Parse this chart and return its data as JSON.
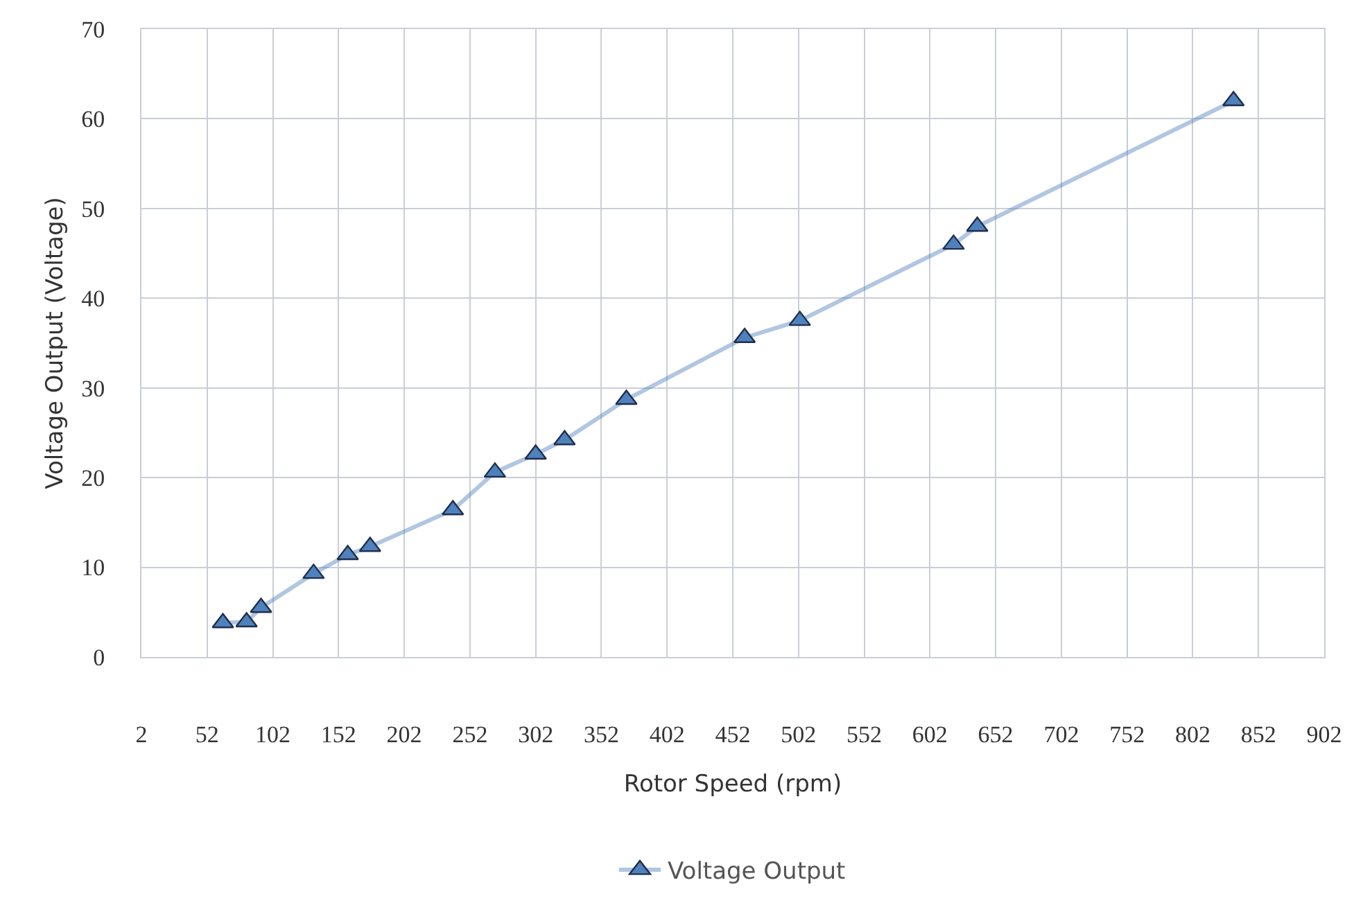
{
  "chart_data": {
    "type": "line",
    "xlabel": "Rotor Speed (rpm)",
    "ylabel": "Voltage Output (Voltage)",
    "xlim": [
      2,
      902
    ],
    "xticks": [
      2,
      52,
      102,
      152,
      202,
      252,
      302,
      352,
      402,
      452,
      502,
      552,
      602,
      652,
      702,
      752,
      802,
      852,
      902
    ],
    "ylim": [
      0,
      70
    ],
    "yticks": [
      0,
      10,
      20,
      30,
      40,
      50,
      60,
      70
    ],
    "grid": true,
    "legend": "bottom",
    "marker": "triangle",
    "line_style": "solid",
    "series": [
      {
        "name": "Voltage Output",
        "color": "#4f81bd",
        "x": [
          64,
          82,
          93,
          133,
          159,
          176,
          239,
          271,
          302,
          324,
          371,
          461,
          503,
          620,
          638,
          833
        ],
        "values": [
          3.8,
          3.9,
          5.5,
          9.3,
          11.4,
          12.3,
          16.4,
          20.6,
          22.6,
          24.2,
          28.7,
          35.6,
          37.5,
          46.0,
          48.0,
          62.0
        ]
      }
    ]
  }
}
